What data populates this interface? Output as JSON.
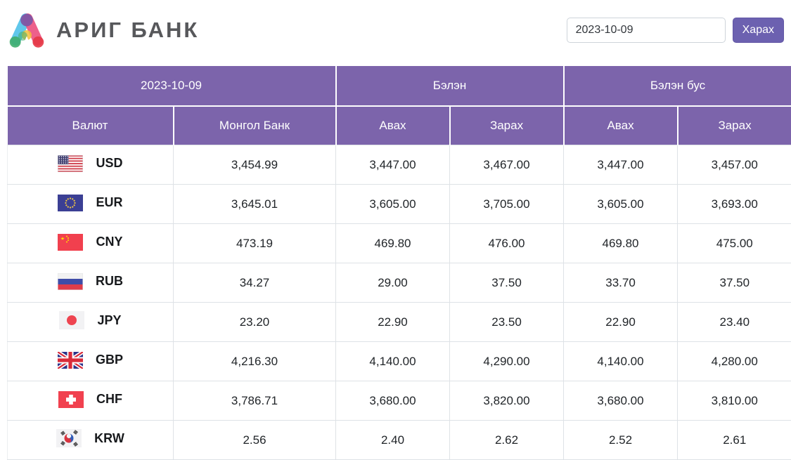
{
  "brand": {
    "name": "АРИГ БАНК"
  },
  "controls": {
    "date_value": "2023-10-09",
    "view_button_label": "Харах"
  },
  "colors": {
    "header_purple": "#7c64ab",
    "button_purple": "#6c61b0",
    "row_border": "#dee2e6",
    "text_dark": "#212529"
  },
  "icons": {
    "logo": "arig-bank-logo",
    "flags": {
      "USD": "flag-usd-icon",
      "EUR": "flag-eur-icon",
      "CNY": "flag-cny-icon",
      "RUB": "flag-rub-icon",
      "JPY": "flag-jpy-icon",
      "GBP": "flag-gbp-icon",
      "CHF": "flag-chf-icon",
      "KRW": "flag-krw-icon"
    }
  },
  "table": {
    "group_headers": [
      "2023-10-09",
      "Бэлэн",
      "Бэлэн бус"
    ],
    "columns": [
      "Валют",
      "Монгол Банк",
      "Авах",
      "Зарах",
      "Авах",
      "Зарах"
    ],
    "rows": [
      {
        "code": "USD",
        "values": [
          "3,454.99",
          "3,447.00",
          "3,467.00",
          "3,447.00",
          "3,457.00"
        ]
      },
      {
        "code": "EUR",
        "values": [
          "3,645.01",
          "3,605.00",
          "3,705.00",
          "3,605.00",
          "3,693.00"
        ]
      },
      {
        "code": "CNY",
        "values": [
          "473.19",
          "469.80",
          "476.00",
          "469.80",
          "475.00"
        ]
      },
      {
        "code": "RUB",
        "values": [
          "34.27",
          "29.00",
          "37.50",
          "33.70",
          "37.50"
        ]
      },
      {
        "code": "JPY",
        "values": [
          "23.20",
          "22.90",
          "23.50",
          "22.90",
          "23.40"
        ]
      },
      {
        "code": "GBP",
        "values": [
          "4,216.30",
          "4,140.00",
          "4,290.00",
          "4,140.00",
          "4,280.00"
        ]
      },
      {
        "code": "CHF",
        "values": [
          "3,786.71",
          "3,680.00",
          "3,820.00",
          "3,680.00",
          "3,810.00"
        ]
      },
      {
        "code": "KRW",
        "values": [
          "2.56",
          "2.40",
          "2.62",
          "2.52",
          "2.61"
        ]
      }
    ]
  }
}
